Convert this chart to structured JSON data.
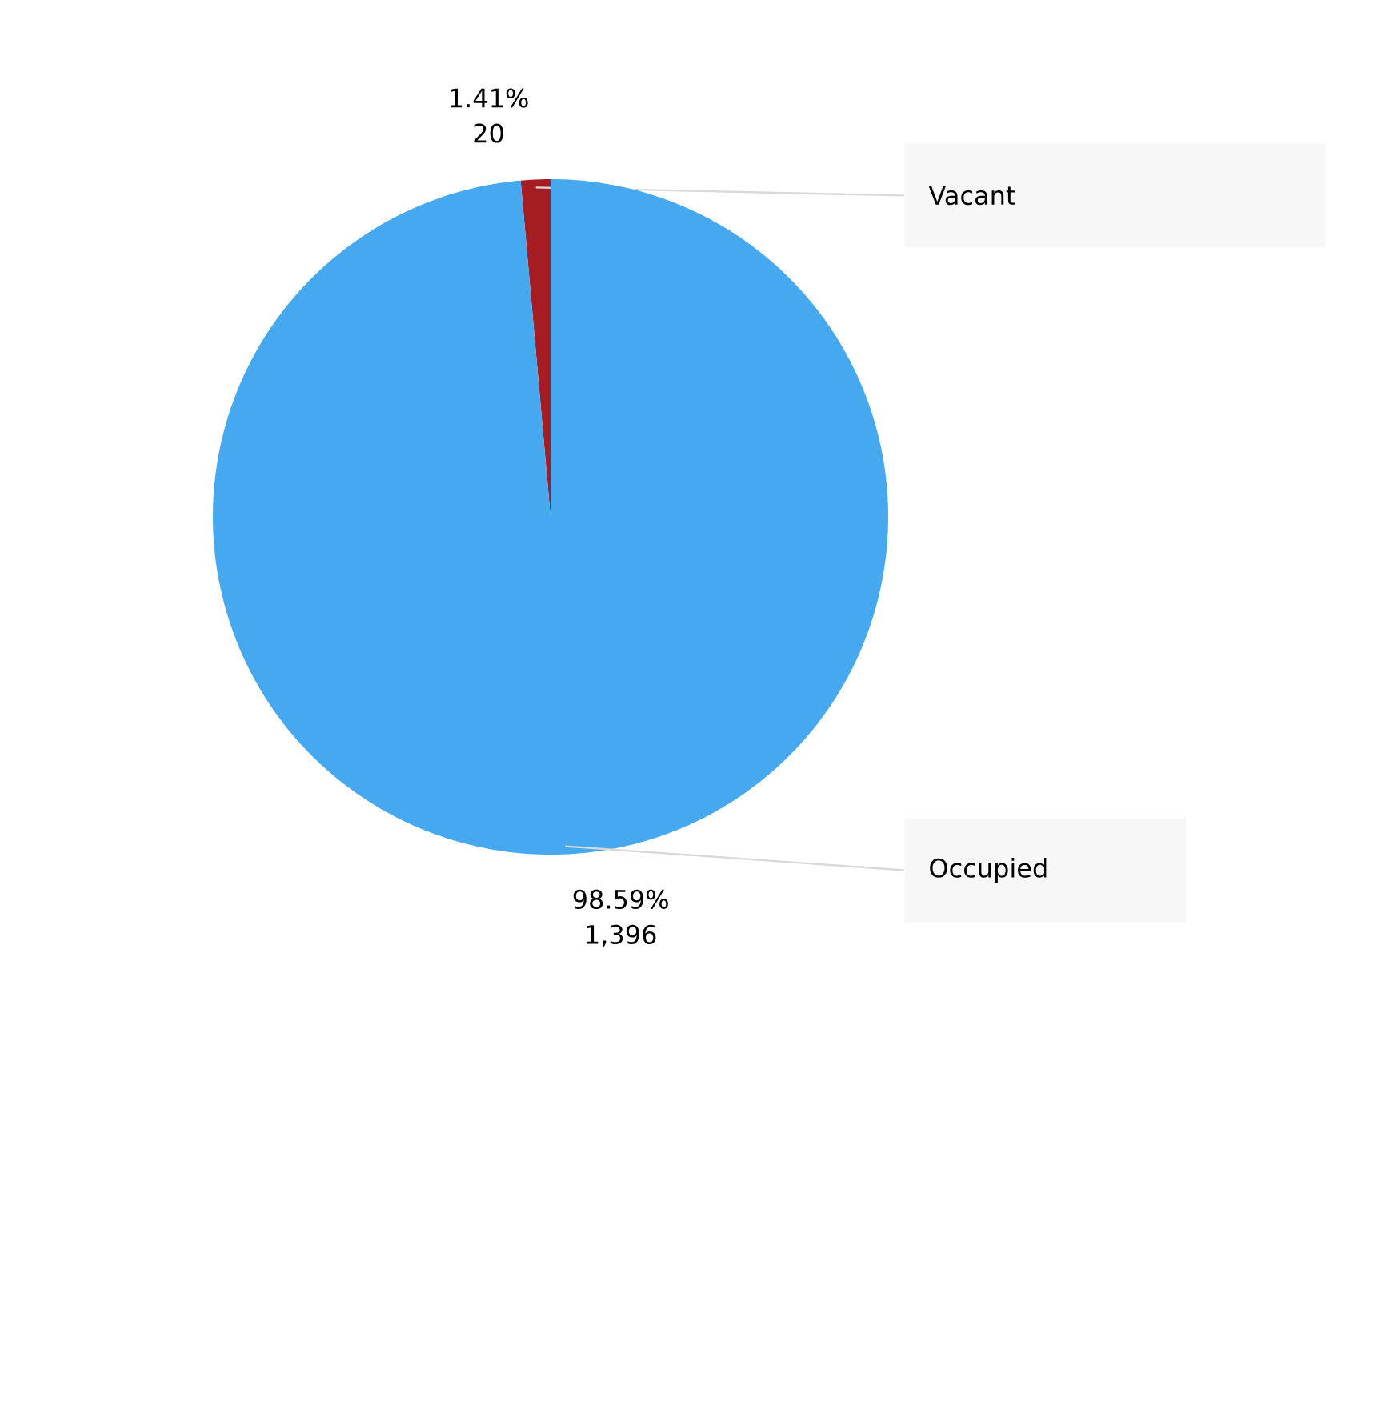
{
  "chart_data": {
    "type": "pie",
    "categories": [
      "Vacant",
      "Occupied"
    ],
    "values": [
      20,
      1396
    ],
    "colors": [
      "#a51d23",
      "#46a9f0"
    ],
    "value_labels": [
      "20",
      "1,396"
    ],
    "annotations": [
      "1.41%",
      "98.59%"
    ]
  }
}
